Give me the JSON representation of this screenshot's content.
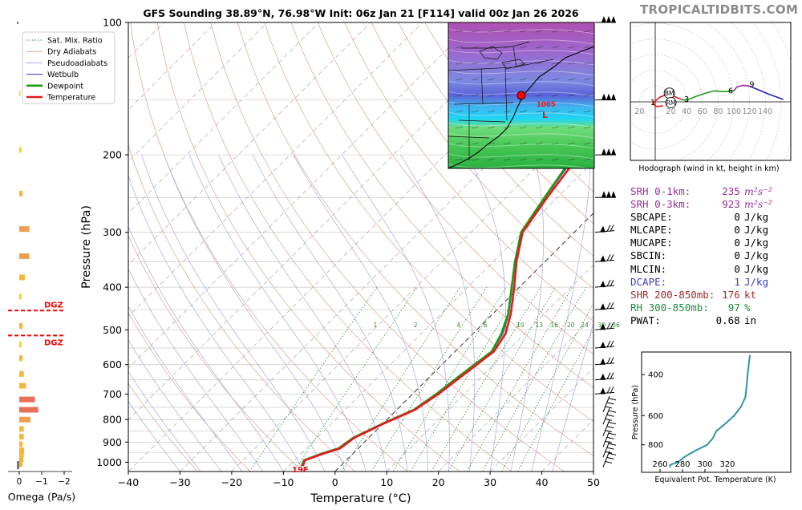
{
  "title": "GFS Sounding 38.89°N, 76.98°W Init: 06z Jan 21 [F114] valid 00z Jan 26 2026",
  "site": "TROPICALTIDBITS.COM",
  "colors": {
    "temperature": "#e41a1c",
    "dewpoint": "#1e9a14",
    "wetbulb": "#3333cc",
    "dry": "#d9a38f",
    "pseudo": "#a8a8e0",
    "mix": "#2e8b2e",
    "srh": "#9b2d9b",
    "dcape": "#3b3bbf",
    "shr": "#a52a2a",
    "rh": "#1b8c3c",
    "theta": "#3093a8"
  },
  "chart_data": [
    {
      "type": "skewt",
      "name": "skew-t",
      "xlabel": "Temperature (°C)",
      "ylabel": "Pressure (hPa)",
      "xlim": [
        -40,
        50
      ],
      "ylim": [
        1050,
        100
      ],
      "x_ticks": [
        -40,
        -30,
        -20,
        -10,
        0,
        10,
        20,
        30,
        40,
        50
      ],
      "y_ticks": [
        100,
        200,
        300,
        400,
        500,
        600,
        700,
        800,
        900,
        1000
      ],
      "legend": {
        "placement": "top-left",
        "items": [
          {
            "label": "Sat. Mix. Ratio",
            "color": "#2e8b2e",
            "style": "dotted"
          },
          {
            "label": "Dry Adiabats",
            "color": "#d9a38f",
            "style": "solid"
          },
          {
            "label": "Pseudoadiabats",
            "color": "#a8a8e0",
            "style": "solid"
          },
          {
            "label": "Wetbulb",
            "color": "#3333cc",
            "style": "solid"
          },
          {
            "label": "Dewpoint",
            "color": "#1e9a14",
            "style": "bold"
          },
          {
            "label": "Temperature",
            "color": "#e41a1c",
            "style": "bold"
          }
        ]
      },
      "mixing_ratio_labels": [
        "1",
        "2",
        "4",
        "6",
        "8",
        "10",
        "13",
        "16",
        "20",
        "24",
        "30",
        "36"
      ],
      "surface_label": "19F",
      "temperature": [
        [
          1020,
          -7.3
        ],
        [
          990,
          -8
        ],
        [
          960,
          -6
        ],
        [
          930,
          -3.5
        ],
        [
          880,
          -2.8
        ],
        [
          820,
          0
        ],
        [
          760,
          3.5
        ],
        [
          700,
          5
        ],
        [
          640,
          6
        ],
        [
          560,
          7.5
        ],
        [
          510,
          6.3
        ],
        [
          460,
          3.5
        ],
        [
          400,
          -1
        ],
        [
          350,
          -5.5
        ],
        [
          300,
          -10
        ],
        [
          250,
          -12
        ],
        [
          200,
          -14
        ],
        [
          150,
          -1
        ],
        [
          100,
          2
        ]
      ],
      "dewpoint": [
        [
          1020,
          -7.5
        ],
        [
          990,
          -8.2
        ],
        [
          960,
          -6.3
        ],
        [
          930,
          -3.8
        ],
        [
          880,
          -3
        ],
        [
          820,
          -0.2
        ],
        [
          760,
          3.3
        ],
        [
          700,
          4.6
        ],
        [
          640,
          5.5
        ],
        [
          560,
          7.1
        ],
        [
          510,
          5.5
        ],
        [
          460,
          3
        ],
        [
          400,
          -1.5
        ],
        [
          350,
          -5.8
        ],
        [
          300,
          -10.3
        ],
        [
          250,
          -12.5
        ],
        [
          200,
          -15
        ],
        [
          150,
          -22
        ],
        [
          100,
          -7
        ]
      ]
    },
    {
      "type": "bar",
      "name": "omega",
      "xlabel": "Omega (Pa/s)",
      "x_ticks": [
        "0",
        "−1",
        "−2"
      ],
      "labels": [
        "DGZ",
        "DGZ"
      ],
      "dgz_pressures": [
        452,
        515
      ],
      "bars": [
        [
          1010,
          0.15
        ],
        [
          985,
          0.18
        ],
        [
          960,
          0.2
        ],
        [
          940,
          0.22
        ],
        [
          910,
          0.15
        ],
        [
          875,
          0.2
        ],
        [
          840,
          0.2
        ],
        [
          800,
          0.5
        ],
        [
          760,
          0.85
        ],
        [
          720,
          0.7
        ],
        [
          670,
          0.3
        ],
        [
          630,
          0.2
        ],
        [
          580,
          0.15
        ],
        [
          540,
          0.1
        ],
        [
          490,
          0.15
        ],
        [
          420,
          0.1
        ],
        [
          380,
          0.25
        ],
        [
          340,
          0.45
        ],
        [
          295,
          0.45
        ],
        [
          245,
          0.15
        ],
        [
          195,
          0.1
        ],
        [
          145,
          0.05
        ]
      ]
    },
    {
      "type": "line",
      "name": "hodograph",
      "caption": "Hodograph (wind in kt, height in km)",
      "x_ticks": [
        "20",
        "40",
        "60",
        "80",
        "100",
        "120",
        "140"
      ],
      "left_tick": "20",
      "markers": [
        "BM",
        "RM"
      ],
      "height_labels": [
        "1",
        "2",
        "3",
        "6",
        "9"
      ],
      "segments": [
        {
          "color": "#e41a1c",
          "points": [
            [
              10,
              -5
            ],
            [
              2,
              -6
            ],
            [
              -1,
              -4
            ],
            [
              -3,
              -2
            ],
            [
              0,
              1
            ],
            [
              6,
              6
            ],
            [
              16,
              10
            ],
            [
              24,
              7
            ],
            [
              33,
              3
            ]
          ]
        },
        {
          "color": "#1e9a14",
          "points": [
            [
              33,
              3
            ],
            [
              40,
              2
            ],
            [
              52,
              7
            ],
            [
              64,
              11
            ],
            [
              75,
              14
            ],
            [
              88,
              13
            ],
            [
              100,
              14
            ]
          ]
        },
        {
          "color": "#9b2d9b",
          "points": [
            [
              100,
              14
            ],
            [
              104,
              19
            ],
            [
              112,
              21
            ],
            [
              120,
              20
            ]
          ]
        },
        {
          "color": "#2222bb",
          "points": [
            [
              120,
              20
            ],
            [
              144,
              10
            ],
            [
              163,
              3
            ]
          ]
        }
      ],
      "bm_marker": [
        18,
        11
      ],
      "rm_marker": [
        20,
        -1
      ]
    },
    {
      "type": "line",
      "name": "theta-e",
      "xlabel": "Equivalent Pot. Temperature (K)",
      "ylabel": "Pressure (hPa)",
      "x_ticks": [
        260,
        280,
        300,
        320
      ],
      "y_ticks": [
        400,
        600,
        800
      ],
      "points": [
        [
          1000,
          269
        ],
        [
          975,
          269
        ],
        [
          950,
          276
        ],
        [
          900,
          282
        ],
        [
          850,
          291
        ],
        [
          800,
          302
        ],
        [
          750,
          307
        ],
        [
          700,
          310
        ],
        [
          650,
          318
        ],
        [
          600,
          326
        ],
        [
          550,
          332
        ],
        [
          500,
          336
        ],
        [
          450,
          337
        ],
        [
          400,
          338
        ],
        [
          330,
          340
        ]
      ]
    }
  ],
  "params": [
    {
      "label": "SRH 0-1km:",
      "value": "235",
      "unit": "m²s⁻²",
      "color": "#9b2d9b"
    },
    {
      "label": "SRH 0-3km:",
      "value": "923",
      "unit": "m²s⁻²",
      "color": "#9b2d9b"
    },
    {
      "label": "SBCAPE:",
      "value": "0",
      "unit": "J/kg",
      "color": "#000000"
    },
    {
      "label": "MLCAPE:",
      "value": "0",
      "unit": "J/kg",
      "color": "#000000"
    },
    {
      "label": "MUCAPE:",
      "value": "0",
      "unit": "J/kg",
      "color": "#000000"
    },
    {
      "label": "SBCIN:",
      "value": "0",
      "unit": "J/kg",
      "color": "#000000"
    },
    {
      "label": "MLCIN:",
      "value": "0",
      "unit": "J/kg",
      "color": "#000000"
    },
    {
      "label": "DCAPE:",
      "value": "1",
      "unit": "J/kg",
      "color": "#3b3bbf"
    },
    {
      "label": "SHR 200-850mb:",
      "value": "176",
      "unit": "kt",
      "color": "#a52a2a"
    },
    {
      "label": "RH 300-850mb:",
      "value": "97",
      "unit": "%",
      "color": "#1b8c3c"
    },
    {
      "label": "PWAT:",
      "value": "0.68",
      "unit": "in",
      "color": "#000000"
    }
  ],
  "map": {
    "low_pressure_label": "1005",
    "low_symbol": "L"
  }
}
